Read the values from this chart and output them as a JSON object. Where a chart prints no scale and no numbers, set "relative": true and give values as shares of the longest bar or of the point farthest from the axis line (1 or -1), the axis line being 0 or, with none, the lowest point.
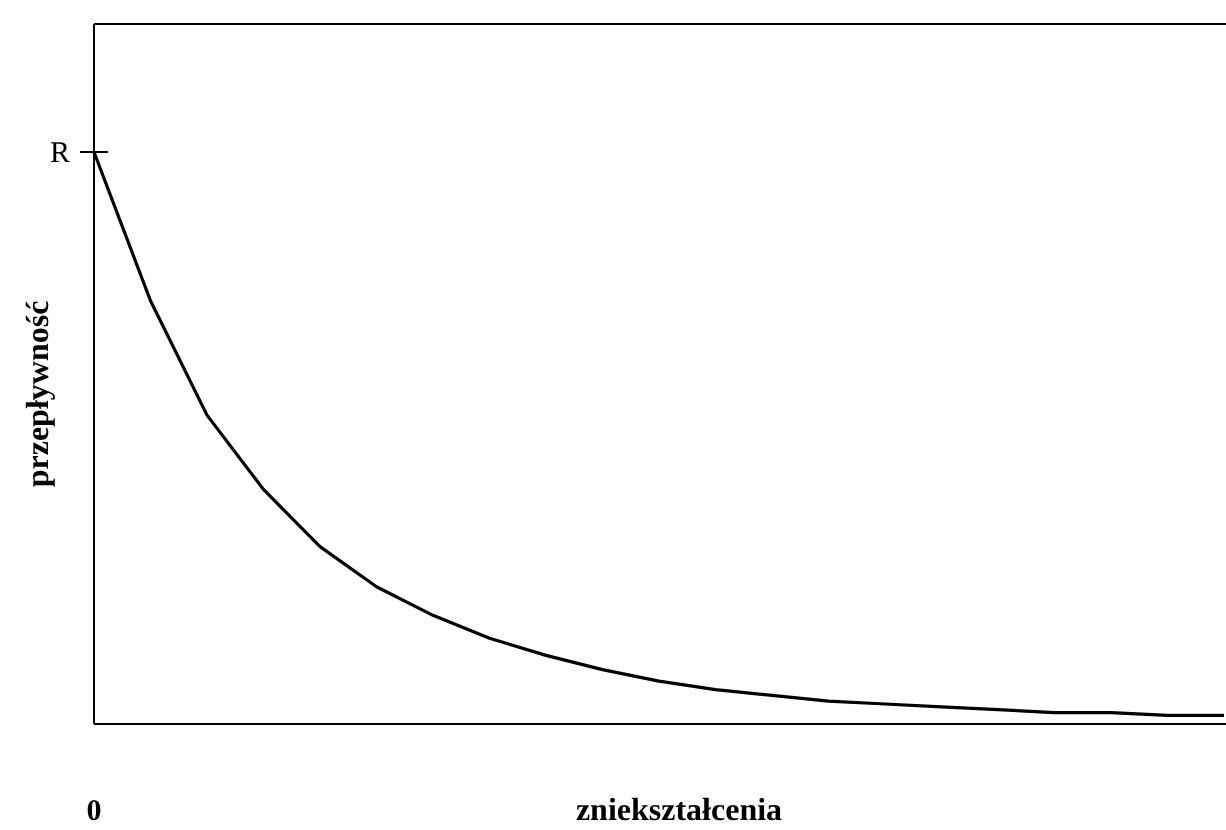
{
  "chart_data": {
    "type": "line",
    "relative": true,
    "xlabel": "zniekształcenia",
    "ylabel": "przepływność",
    "categories": [
      null,
      null,
      null,
      null,
      null,
      null,
      null,
      null,
      null,
      null,
      null,
      null,
      null,
      null,
      null,
      null,
      null,
      null,
      null,
      null,
      null
    ],
    "series": [
      {
        "color": "#000000",
        "values": [
          1,
          0.74,
          0.54,
          0.41,
          0.31,
          0.24,
          0.19,
          0.15,
          0.12,
          0.095,
          0.075,
          0.06,
          0.05,
          0.04,
          0.035,
          0.03,
          0.025,
          0.02,
          0.02,
          0.015,
          0.015
        ]
      }
    ],
    "annotations": [
      "R",
      "0"
    ],
    "marker": "none",
    "line_style": "solid"
  }
}
